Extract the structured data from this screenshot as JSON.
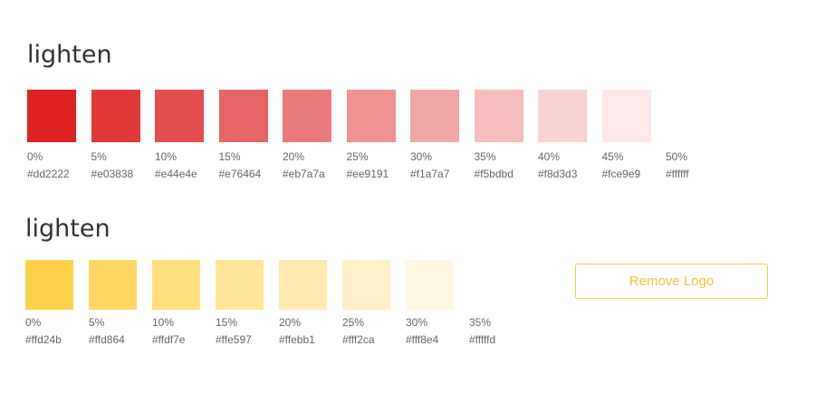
{
  "sections": [
    {
      "title": "lighten",
      "swatches": [
        {
          "percent": "0%",
          "hex": "#dd2222"
        },
        {
          "percent": "5%",
          "hex": "#e03838"
        },
        {
          "percent": "10%",
          "hex": "#e44e4e"
        },
        {
          "percent": "15%",
          "hex": "#e76464"
        },
        {
          "percent": "20%",
          "hex": "#eb7a7a"
        },
        {
          "percent": "25%",
          "hex": "#ee9191"
        },
        {
          "percent": "30%",
          "hex": "#f1a7a7"
        },
        {
          "percent": "35%",
          "hex": "#f5bdbd"
        },
        {
          "percent": "40%",
          "hex": "#f8d3d3"
        },
        {
          "percent": "45%",
          "hex": "#fce9e9"
        },
        {
          "percent": "50%",
          "hex": "#ffffff"
        }
      ]
    },
    {
      "title": "lighten",
      "swatches": [
        {
          "percent": "0%",
          "hex": "#ffd24b"
        },
        {
          "percent": "5%",
          "hex": "#ffd864"
        },
        {
          "percent": "10%",
          "hex": "#ffdf7e"
        },
        {
          "percent": "15%",
          "hex": "#ffe597"
        },
        {
          "percent": "20%",
          "hex": "#ffebb1"
        },
        {
          "percent": "25%",
          "hex": "#fff2ca"
        },
        {
          "percent": "30%",
          "hex": "#fff8e4"
        },
        {
          "percent": "35%",
          "hex": "#fffffd"
        }
      ]
    }
  ],
  "button": {
    "label": "Remove Logo"
  }
}
